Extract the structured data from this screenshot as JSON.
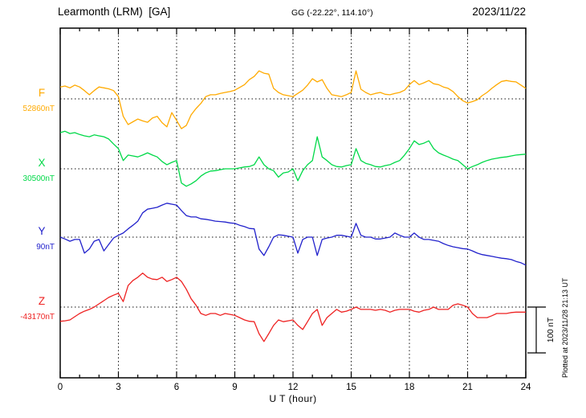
{
  "chart_data": {
    "type": "line",
    "title": "Learmonth (LRM)  [GA]",
    "station_coords": "GG (-22.22°, 114.10°)",
    "date": "2023/11/22",
    "xlabel": "U T (hour)",
    "x_ticks": [
      0,
      3,
      6,
      9,
      12,
      15,
      18,
      21,
      24
    ],
    "x_range": [
      0,
      24
    ],
    "x_minor_step_hours": 1,
    "sample_interval_hours": 0.25,
    "grid": "dotted vertical lines at 3-hour ticks; dotted horizontal baseline per component",
    "legend_position": "left-of-plot component labels",
    "scale_bar": {
      "label": "100 nT",
      "nT": 100
    },
    "plotted_at": "Plotted at 2023/11/28 21:13 UT",
    "series": [
      {
        "name": "F",
        "color": "#FFAA00",
        "baseline_label": "52860nT",
        "baseline_nT": 52860,
        "offsets_nT": [
          26,
          28,
          24,
          30,
          26,
          18,
          9,
          18,
          26,
          24,
          22,
          18,
          5,
          -38,
          -56,
          -50,
          -44,
          -48,
          -51,
          -42,
          -38,
          -52,
          -61,
          -30,
          -47,
          -65,
          -58,
          -35,
          -21,
          -10,
          5,
          9,
          9,
          12,
          14,
          16,
          19,
          25,
          31,
          42,
          49,
          61,
          56,
          54,
          23,
          14,
          9,
          7,
          5,
          12,
          19,
          30,
          44,
          37,
          42,
          23,
          9,
          7,
          5,
          9,
          14,
          61,
          21,
          14,
          9,
          12,
          14,
          10,
          9,
          12,
          14,
          19,
          31,
          40,
          31,
          35,
          40,
          33,
          31,
          26,
          23,
          16,
          5,
          -4,
          -9,
          -6,
          -2,
          7,
          14,
          23,
          31,
          38,
          40,
          38,
          37,
          30,
          23
        ]
      },
      {
        "name": "X",
        "color": "#00D948",
        "baseline_label": "30500nT",
        "baseline_nT": 30500,
        "offsets_nT": [
          79,
          82,
          77,
          79,
          75,
          72,
          70,
          74,
          72,
          70,
          65,
          54,
          44,
          18,
          30,
          28,
          26,
          30,
          35,
          30,
          26,
          16,
          9,
          14,
          18,
          -31,
          -38,
          -33,
          -26,
          -16,
          -9,
          -5,
          -4,
          -2,
          0,
          0,
          0,
          2,
          4,
          5,
          9,
          26,
          9,
          0,
          -4,
          -18,
          -9,
          -7,
          0,
          -26,
          -4,
          9,
          18,
          70,
          26,
          18,
          9,
          5,
          4,
          7,
          9,
          44,
          18,
          12,
          9,
          5,
          4,
          7,
          9,
          14,
          18,
          30,
          44,
          61,
          53,
          56,
          61,
          44,
          35,
          30,
          26,
          21,
          18,
          9,
          0,
          5,
          9,
          14,
          18,
          21,
          23,
          25,
          26,
          28,
          30,
          31,
          32
        ]
      },
      {
        "name": "Y",
        "color": "#2222CC",
        "baseline_label": "90nT",
        "baseline_nT": 90,
        "offsets_nT": [
          0,
          -4,
          -9,
          -5,
          -5,
          -35,
          -26,
          -9,
          -5,
          -30,
          -16,
          -2,
          4,
          9,
          18,
          26,
          35,
          53,
          61,
          63,
          65,
          70,
          74,
          72,
          70,
          58,
          47,
          44,
          44,
          40,
          39,
          37,
          35,
          34,
          33,
          31,
          30,
          26,
          23,
          19,
          18,
          -26,
          -40,
          -21,
          0,
          5,
          4,
          2,
          0,
          -35,
          -5,
          0,
          0,
          -40,
          -5,
          -2,
          0,
          4,
          4,
          2,
          0,
          30,
          4,
          0,
          0,
          -4,
          -4,
          -2,
          0,
          9,
          4,
          0,
          0,
          9,
          0,
          -5,
          -5,
          -7,
          -9,
          -14,
          -18,
          -21,
          -23,
          -25,
          -26,
          -30,
          -35,
          -38,
          -40,
          -42,
          -44,
          -46,
          -47,
          -49,
          -53,
          -56,
          -61
        ]
      },
      {
        "name": "Z",
        "color": "#EE2222",
        "baseline_label": "-43170nT",
        "baseline_nT": -43170,
        "offsets_nT": [
          -31,
          -30,
          -28,
          -21,
          -14,
          -9,
          -5,
          0,
          7,
          14,
          21,
          26,
          30,
          12,
          47,
          58,
          65,
          74,
          65,
          61,
          60,
          65,
          56,
          60,
          65,
          56,
          39,
          18,
          4,
          -14,
          -18,
          -14,
          -14,
          -18,
          -14,
          -16,
          -18,
          -23,
          -28,
          -31,
          -32,
          -58,
          -75,
          -58,
          -40,
          -28,
          -32,
          -30,
          -28,
          -40,
          -49,
          -32,
          -14,
          -5,
          -40,
          -23,
          -14,
          -5,
          -11,
          -9,
          -5,
          0,
          -5,
          -5,
          -5,
          -7,
          -5,
          -7,
          -11,
          -7,
          -5,
          -5,
          -5,
          -9,
          -11,
          -7,
          -5,
          0,
          -5,
          -5,
          -5,
          4,
          7,
          4,
          0,
          -14,
          -23,
          -23,
          -23,
          -19,
          -14,
          -14,
          -14,
          -12,
          -11,
          -11,
          -11
        ]
      }
    ]
  }
}
